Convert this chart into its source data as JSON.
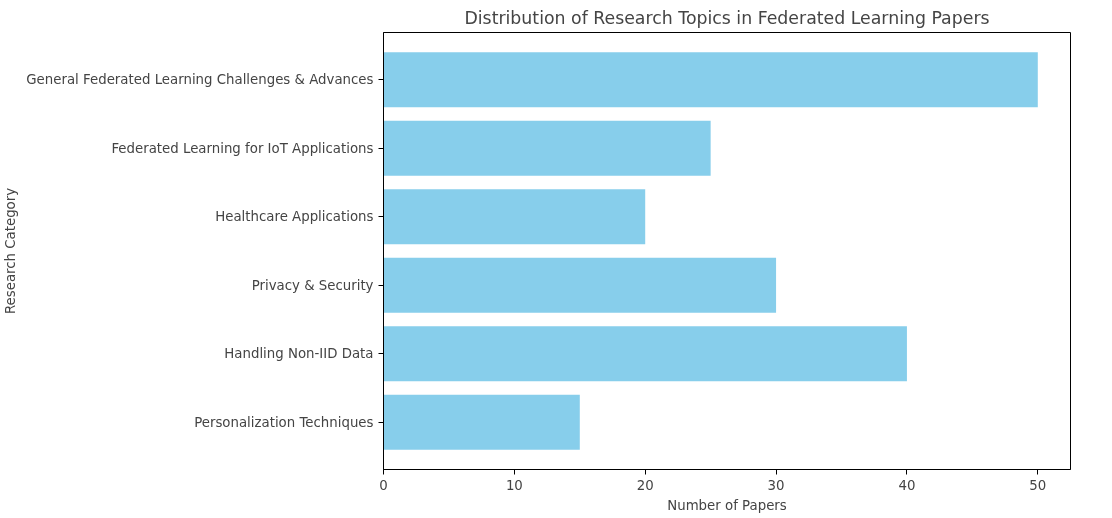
{
  "chart_data": {
    "type": "bar",
    "orientation": "horizontal",
    "title": "Distribution of Research Topics in Federated Learning Papers",
    "xlabel": "Number of Papers",
    "ylabel": "Research Category",
    "categories": [
      "General Federated Learning Challenges & Advances",
      "Federated Learning for IoT Applications",
      "Healthcare Applications",
      "Privacy & Security",
      "Handling Non-IID Data",
      "Personalization Techniques"
    ],
    "values": [
      50,
      25,
      20,
      30,
      40,
      15
    ],
    "color": "#87ceeb",
    "xlim": [
      0,
      52.5
    ],
    "xticks": [
      0,
      10,
      20,
      30,
      40,
      50
    ],
    "grid": false
  }
}
